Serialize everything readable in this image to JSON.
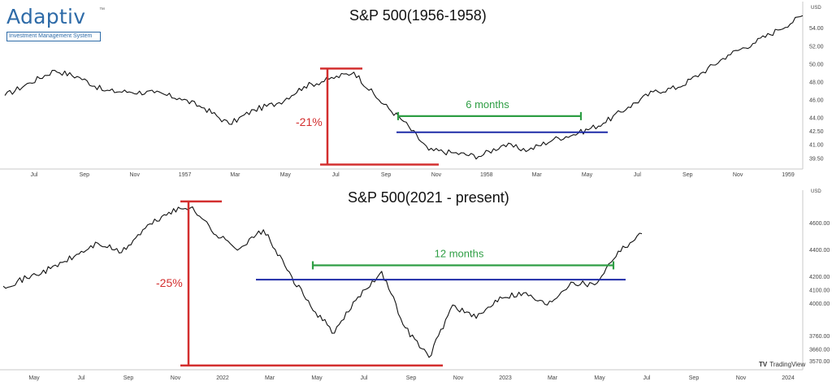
{
  "logo": {
    "word": "Adaptiv",
    "tm": "™",
    "tagline": "Investment Management System"
  },
  "watermark": {
    "mark": "TV",
    "text": "TradingView"
  },
  "colors": {
    "price_line": "#111111",
    "drawdown": "#d32f2f",
    "duration": "#2e9e44",
    "support": "#1f2ca8",
    "axis_text": "#444444"
  },
  "chart_data": [
    {
      "type": "line",
      "title": "S&P 500(1956-1958)",
      "currency_label": "USD",
      "x_tick_labels": [
        "Jul",
        "Sep",
        "Nov",
        "1957",
        "Mar",
        "May",
        "Jul",
        "Sep",
        "Nov",
        "1958",
        "Mar",
        "May",
        "Jul",
        "Sep",
        "Nov",
        "1959"
      ],
      "y_tick_labels": [
        "54.00",
        "52.00",
        "50.00",
        "48.00",
        "46.00",
        "44.00",
        "42.50",
        "41.00",
        "39.50"
      ],
      "ylim": [
        38.3,
        56.6
      ],
      "x": [
        "1956-05",
        "1956-06",
        "1956-07",
        "1956-08",
        "1956-09",
        "1956-10",
        "1956-11",
        "1956-12",
        "1957-01",
        "1957-02",
        "1957-03",
        "1957-04",
        "1957-05",
        "1957-06",
        "1957-07",
        "1957-08",
        "1957-09",
        "1957-10",
        "1957-11",
        "1957-12",
        "1958-01",
        "1958-02",
        "1958-03",
        "1958-04",
        "1958-05",
        "1958-06",
        "1958-07",
        "1958-08",
        "1958-09",
        "1958-10",
        "1958-11",
        "1958-12",
        "1959-01"
      ],
      "y": [
        46.5,
        47.9,
        49.3,
        48.5,
        47.0,
        46.9,
        46.8,
        46.2,
        45.1,
        43.3,
        44.9,
        45.7,
        47.5,
        48.3,
        49.1,
        46.0,
        43.6,
        40.4,
        40.1,
        39.7,
        41.0,
        40.4,
        41.6,
        42.3,
        43.4,
        45.2,
        46.9,
        47.4,
        49.1,
        51.0,
        52.3,
        53.8,
        55.4
      ],
      "annotations": {
        "drawdown_label": "-21%",
        "duration_label": "6 months",
        "support_level": 42.4
      }
    },
    {
      "type": "line",
      "title": "S&P 500(2021 - present)",
      "currency_label": "USD",
      "x_tick_labels": [
        "May",
        "Jul",
        "Sep",
        "Nov",
        "2022",
        "Mar",
        "May",
        "Jul",
        "Sep",
        "Nov",
        "2023",
        "Mar",
        "May",
        "Jul",
        "Sep",
        "Nov",
        "2024"
      ],
      "y_tick_labels": [
        "4600.00",
        "4400.00",
        "4200.00",
        "4100.00",
        "4000.00",
        "3760.00",
        "3660.00",
        "3570.00"
      ],
      "ylim": [
        3520,
        4820
      ],
      "x": [
        "2021-04",
        "2021-05",
        "2021-06",
        "2021-07",
        "2021-08",
        "2021-09",
        "2021-10",
        "2021-11",
        "2021-12",
        "2022-01",
        "2022-02",
        "2022-03",
        "2022-04",
        "2022-05",
        "2022-06",
        "2022-07",
        "2022-08",
        "2022-09",
        "2022-10",
        "2022-11",
        "2022-12",
        "2023-01",
        "2023-02",
        "2023-03",
        "2023-04",
        "2023-05",
        "2023-06",
        "2023-07"
      ],
      "y": [
        4130,
        4190,
        4260,
        4350,
        4450,
        4380,
        4560,
        4680,
        4720,
        4510,
        4410,
        4550,
        4250,
        3980,
        3780,
        4050,
        4240,
        3820,
        3600,
        3990,
        3890,
        4050,
        4080,
        3990,
        4160,
        4140,
        4390,
        4520
      ],
      "annotations": {
        "drawdown_label": "-25%",
        "duration_label": "12 months",
        "support_level": 4178
      }
    }
  ]
}
